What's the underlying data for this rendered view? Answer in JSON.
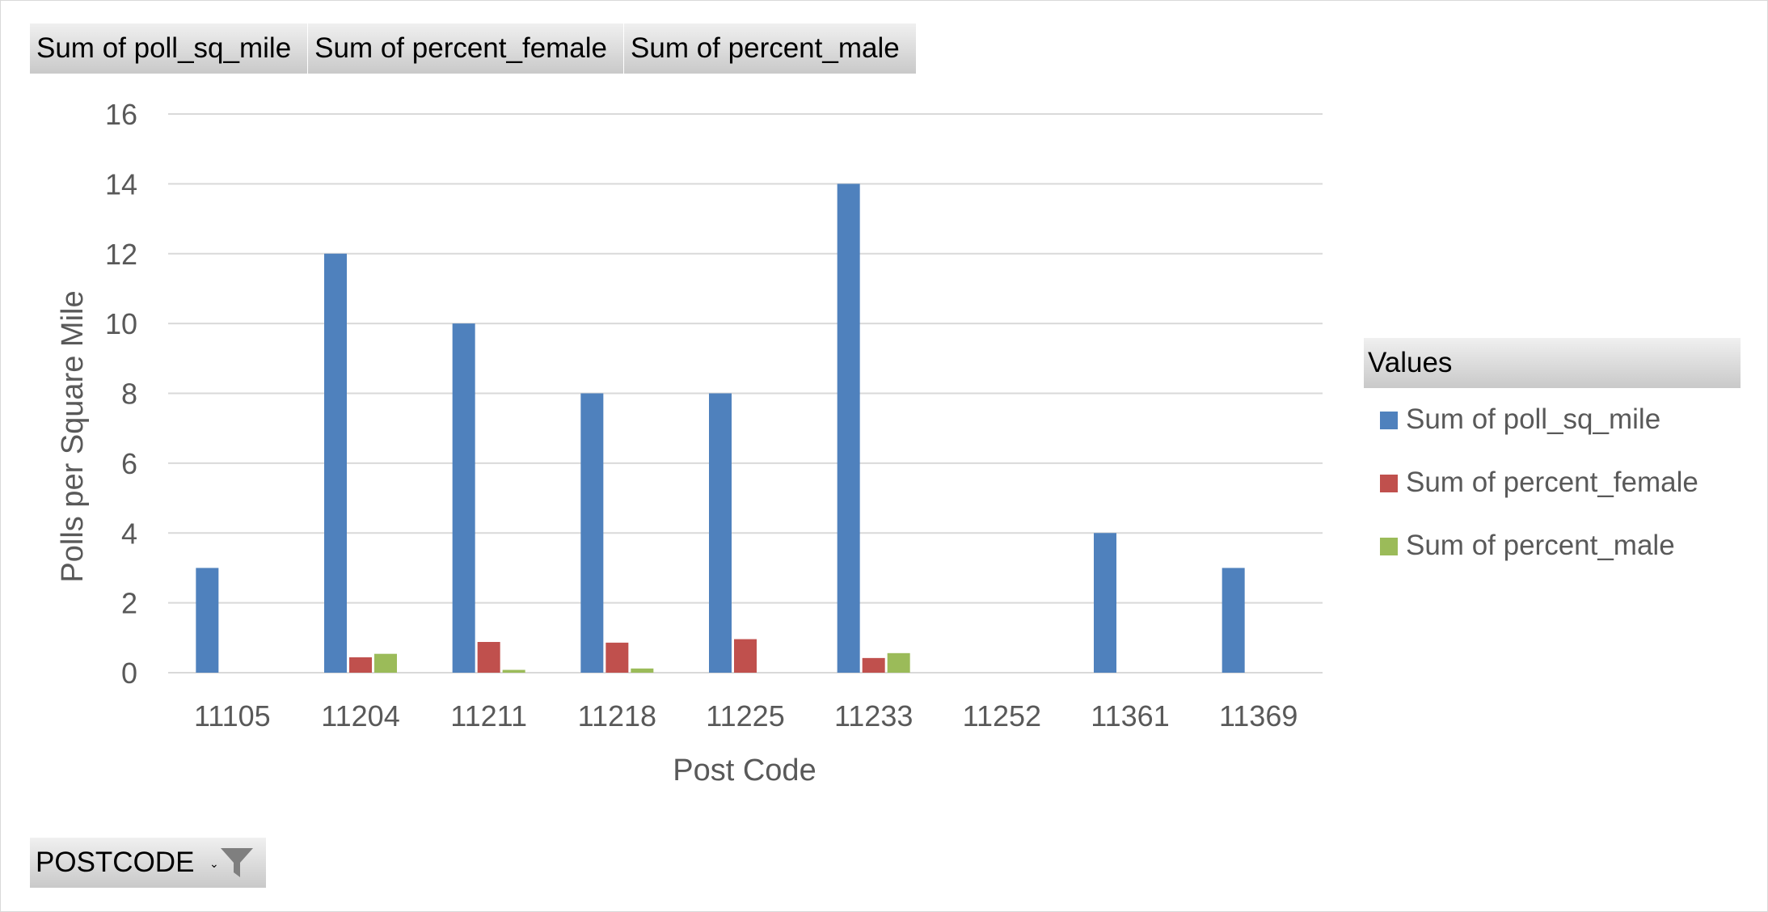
{
  "field_buttons": [
    {
      "label": "Sum of poll_sq_mile"
    },
    {
      "label": "Sum of percent_female"
    },
    {
      "label": "Sum of percent_male"
    }
  ],
  "filter": {
    "label": "POSTCODE",
    "arrow": "⌄",
    "icon": "funnel-icon"
  },
  "legend": {
    "title": "Values"
  },
  "colors": {
    "grid": "#d9d9d9",
    "axis_text": "#595959"
  },
  "chart_data": {
    "type": "bar",
    "title": "",
    "xlabel": "Post Code",
    "ylabel": "Polls per Square Mile",
    "ylim": [
      0,
      16
    ],
    "yticks": [
      0,
      2,
      4,
      6,
      8,
      10,
      12,
      14,
      16
    ],
    "grid": true,
    "legend_position": "right",
    "categories": [
      "11105",
      "11204",
      "11211",
      "11218",
      "11225",
      "11233",
      "11252",
      "11361",
      "11369"
    ],
    "series": [
      {
        "name": "Sum of poll_sq_mile",
        "color": "#4f81bd",
        "values": [
          3,
          12,
          10,
          8,
          8,
          14,
          null,
          4,
          3
        ]
      },
      {
        "name": "Sum of percent_female",
        "color": "#c0504d",
        "values": [
          null,
          0.44,
          0.88,
          0.86,
          0.96,
          0.42,
          null,
          null,
          null
        ]
      },
      {
        "name": "Sum of percent_male",
        "color": "#9bbb59",
        "values": [
          null,
          0.54,
          0.08,
          0.12,
          null,
          0.56,
          null,
          null,
          null
        ]
      }
    ]
  }
}
